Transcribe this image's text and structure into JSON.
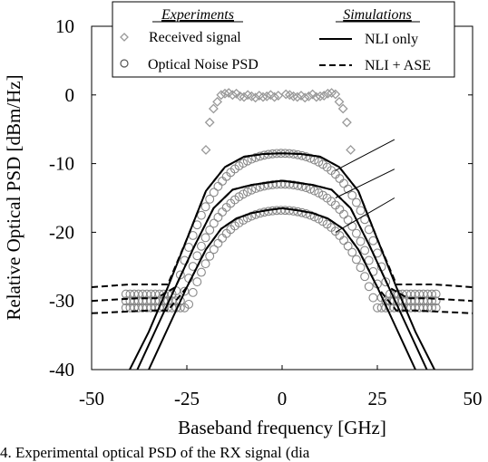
{
  "chart_data": {
    "type": "scatter",
    "xlabel": "Baseband frequency [GHz]",
    "ylabel": "Relative Optical PSD [dBm/Hz]",
    "xlim": [
      -50,
      50
    ],
    "ylim": [
      -40,
      10
    ],
    "xticks": [
      -50,
      -25,
      0,
      25,
      50
    ],
    "yticks": [
      10,
      0,
      -10,
      -20,
      -30,
      -40
    ],
    "grid": false,
    "legend": {
      "placement": "top",
      "experiments_header": "Experiments",
      "simulations_header": "Simulations",
      "entries": [
        {
          "label": "Received signal",
          "marker": "diamond",
          "color": "#999999"
        },
        {
          "label": "Optical Noise PSD",
          "marker": "circle",
          "color": "#888888"
        },
        {
          "label": "NLI only",
          "line": "solid",
          "color": "#000000"
        },
        {
          "label": "NLI + ASE",
          "line": "dashed",
          "color": "#000000"
        }
      ]
    },
    "received_signal": {
      "x": [
        -20,
        -19,
        -18,
        -17,
        -16,
        -15,
        -14,
        -13,
        -12,
        -11,
        -10,
        -9,
        -8,
        -7,
        -6,
        -5,
        -4,
        -3,
        -2,
        -1,
        1,
        2,
        3,
        4,
        5,
        6,
        7,
        8,
        9,
        10,
        11,
        12,
        13,
        14,
        15,
        16,
        17,
        18
      ],
      "y": [
        -8,
        -4,
        -2,
        -1,
        0,
        0.2,
        0.3,
        0,
        0.2,
        -0.2,
        -0.3,
        0,
        -0.2,
        -0.4,
        -0.1,
        -0.3,
        -0.2,
        0,
        -0.3,
        -0.1,
        0.1,
        0,
        -0.2,
        -0.3,
        -0.1,
        -0.4,
        -0.2,
        0.1,
        -0.3,
        -0.2,
        -0.1,
        0.2,
        0.3,
        0.1,
        -1,
        -2,
        -4,
        -8
      ]
    },
    "noise_psd_series": [
      {
        "peak": -8.5,
        "x_half": 18.5,
        "floor": -29
      },
      {
        "peak": -13,
        "x_half": 18.5,
        "floor": -30
      },
      {
        "peak": -16.8,
        "x_half": 18.5,
        "floor": -31
      }
    ],
    "nli_only_series": [
      {
        "peak": -8.5,
        "x": [
          -40,
          -35,
          -30,
          -25,
          -20,
          -15,
          -10,
          -5,
          0,
          5,
          10,
          15,
          20,
          25,
          30,
          35,
          40
        ],
        "y": [
          -40,
          -34.5,
          -28,
          -21,
          -14,
          -10.5,
          -9,
          -8.6,
          -8.5,
          -8.6,
          -9,
          -10.5,
          -14,
          -21,
          -28,
          -34.5,
          -40
        ]
      },
      {
        "peak": -12.5,
        "x": [
          -38,
          -33,
          -28,
          -23,
          -18,
          -13,
          -8,
          -3,
          0,
          3,
          8,
          13,
          18,
          23,
          28,
          33,
          38
        ],
        "y": [
          -40,
          -34,
          -28,
          -22,
          -16.5,
          -13.8,
          -13.1,
          -12.7,
          -12.5,
          -12.7,
          -13.1,
          -13.8,
          -16.5,
          -22,
          -28,
          -34,
          -40
        ]
      },
      {
        "peak": -16.5,
        "x": [
          -35,
          -30,
          -25,
          -20,
          -16,
          -12,
          -8,
          -4,
          0,
          4,
          8,
          12,
          16,
          20,
          25,
          30,
          35
        ],
        "y": [
          -40,
          -34,
          -28,
          -22.5,
          -19.5,
          -18,
          -17.2,
          -16.8,
          -16.5,
          -16.8,
          -17.2,
          -18,
          -19.5,
          -22.5,
          -28,
          -34,
          -40
        ]
      }
    ],
    "nli_ase_series": [
      {
        "floor": -28,
        "peak": -8.5
      },
      {
        "floor": -30,
        "peak": -12.5
      },
      {
        "floor": -31.8,
        "peak": -16.5
      }
    ]
  },
  "caption": "4. Experimental optical PSD of the RX signal (dia"
}
